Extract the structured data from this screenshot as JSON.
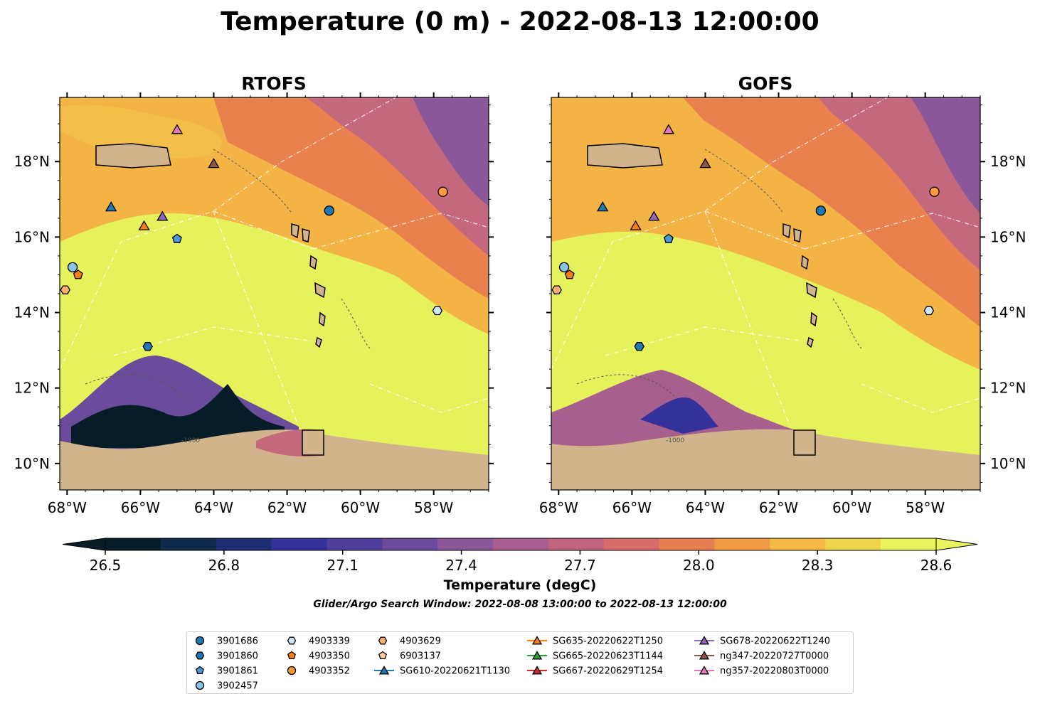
{
  "figure": {
    "title": "Temperature (0 m) - 2022-08-13 12:00:00",
    "search_window": "Glider/Argo Search Window: 2022-08-08 13:00:00 to 2022-08-13 12:00:00"
  },
  "colors": {
    "land": "#d2b48c",
    "water_inland": "#8fb3d9",
    "track": "#ffffff",
    "stops": [
      "#061c26",
      "#0d2a4a",
      "#1d2f72",
      "#35319b",
      "#4f3e9c",
      "#6b4b9b",
      "#8a5798",
      "#a75f8e",
      "#c26480",
      "#d86c6a",
      "#e77f52",
      "#f19b44",
      "#f5ba45",
      "#efd54d",
      "#e8f55c"
    ]
  },
  "chart_data": [
    {
      "type": "heatmap",
      "title": "RTOFS",
      "xlabel": "",
      "ylabel": "",
      "xlim": [
        -68.2,
        -56.5
      ],
      "ylim": [
        9.3,
        19.7
      ],
      "xticks": [
        "68°W",
        "66°W",
        "64°W",
        "62°W",
        "60°W",
        "58°W"
      ],
      "xtick_values": [
        -68,
        -66,
        -64,
        -62,
        -60,
        -58
      ],
      "yticks": [
        "10°N",
        "12°N",
        "14°N",
        "16°N",
        "18°N"
      ],
      "ytick_values": [
        10,
        12,
        14,
        16,
        18
      ],
      "contour_labels": [
        "-1000"
      ],
      "observations": [
        {
          "name": "3901686",
          "lon": -60.85,
          "lat": 16.7
        },
        {
          "name": "3901860",
          "lon": -65.8,
          "lat": 13.1
        },
        {
          "name": "3901861",
          "lon": -65.0,
          "lat": 15.95
        },
        {
          "name": "3902457",
          "lon": -67.85,
          "lat": 15.2
        },
        {
          "name": "4903339",
          "lon": -57.9,
          "lat": 14.05
        },
        {
          "name": "4903350",
          "lon": -67.7,
          "lat": 15.0
        },
        {
          "name": "4903352",
          "lon": -57.75,
          "lat": 17.2
        },
        {
          "name": "4903629",
          "lon": -68.05,
          "lat": 14.6
        },
        {
          "name": "SG610-20220621T1130",
          "lon": -66.8,
          "lat": 16.8
        },
        {
          "name": "SG635-20220622T1250",
          "lon": -65.9,
          "lat": 16.3
        },
        {
          "name": "SG678-20220622T1240",
          "lon": -65.4,
          "lat": 16.55
        },
        {
          "name": "ng347-20220727T0000",
          "lon": -64.0,
          "lat": 17.95
        },
        {
          "name": "ng357-20220803T0000",
          "lon": -65.0,
          "lat": 18.85
        }
      ]
    },
    {
      "type": "heatmap",
      "title": "GOFS",
      "xlabel": "",
      "ylabel": "",
      "xlim": [
        -68.2,
        -56.5
      ],
      "ylim": [
        9.3,
        19.7
      ],
      "xticks": [
        "68°W",
        "66°W",
        "64°W",
        "62°W",
        "60°W",
        "58°W"
      ],
      "xtick_values": [
        -68,
        -66,
        -64,
        -62,
        -60,
        -58
      ],
      "yticks": [
        "10°N",
        "12°N",
        "14°N",
        "16°N",
        "18°N"
      ],
      "ytick_values": [
        10,
        12,
        14,
        16,
        18
      ],
      "contour_labels": [
        "-1000"
      ],
      "observations": [
        {
          "name": "3901686",
          "lon": -60.85,
          "lat": 16.7
        },
        {
          "name": "3901860",
          "lon": -65.8,
          "lat": 13.1
        },
        {
          "name": "3901861",
          "lon": -65.0,
          "lat": 15.95
        },
        {
          "name": "3902457",
          "lon": -67.85,
          "lat": 15.2
        },
        {
          "name": "4903339",
          "lon": -57.9,
          "lat": 14.05
        },
        {
          "name": "4903350",
          "lon": -67.7,
          "lat": 15.0
        },
        {
          "name": "4903352",
          "lon": -57.75,
          "lat": 17.2
        },
        {
          "name": "4903629",
          "lon": -68.05,
          "lat": 14.6
        },
        {
          "name": "SG610-20220621T1130",
          "lon": -66.8,
          "lat": 16.8
        },
        {
          "name": "SG635-20220622T1250",
          "lon": -65.9,
          "lat": 16.3
        },
        {
          "name": "SG678-20220622T1240",
          "lon": -65.4,
          "lat": 16.55
        },
        {
          "name": "ng347-20220727T0000",
          "lon": -64.0,
          "lat": 17.95
        },
        {
          "name": "ng357-20220803T0000",
          "lon": -65.0,
          "lat": 18.85
        }
      ]
    }
  ],
  "colorbar": {
    "label": "Temperature (degC)",
    "ticks": [
      "26.5",
      "26.8",
      "27.1",
      "27.4",
      "27.7",
      "28.0",
      "28.3",
      "28.6"
    ],
    "tick_values": [
      26.5,
      26.8,
      27.1,
      27.4,
      27.7,
      28.0,
      28.3,
      28.6
    ],
    "range": [
      26.5,
      28.6
    ],
    "extend": "both"
  },
  "legend": {
    "items": [
      {
        "label": "3901686",
        "marker": "circle",
        "color": "#1f77b4"
      },
      {
        "label": "3901860",
        "marker": "hexagon",
        "color": "#1f77b4"
      },
      {
        "label": "3901861",
        "marker": "pentagon",
        "color": "#4a98d8"
      },
      {
        "label": "3902457",
        "marker": "circle",
        "color": "#88c3ea"
      },
      {
        "label": "4903339",
        "marker": "hexagon",
        "color": "#cfe7fb"
      },
      {
        "label": "4903350",
        "marker": "pentagon",
        "color": "#ff7f0e"
      },
      {
        "label": "4903352",
        "marker": "circle",
        "color": "#ff9a3c"
      },
      {
        "label": "4903629",
        "marker": "hexagon",
        "color": "#ffae6b"
      },
      {
        "label": "6903137",
        "marker": "pentagon",
        "color": "#ffc89a"
      },
      {
        "label": "SG610-20220621T1130",
        "marker": "triangle",
        "color": "#1f77b4",
        "line": true
      },
      {
        "label": "SG635-20220622T1250",
        "marker": "triangle",
        "color": "#ff7f0e",
        "line": true
      },
      {
        "label": "SG665-20220623T1144",
        "marker": "triangle",
        "color": "#2ca02c",
        "line": true
      },
      {
        "label": "SG667-20220629T1254",
        "marker": "triangle",
        "color": "#d62728",
        "line": true
      },
      {
        "label": "SG678-20220622T1240",
        "marker": "triangle",
        "color": "#9467bd",
        "line": true
      },
      {
        "label": "ng347-20220727T0000",
        "marker": "triangle",
        "color": "#8c564b",
        "line": true
      },
      {
        "label": "ng357-20220803T0000",
        "marker": "triangle",
        "color": "#e377c2",
        "line": true
      }
    ]
  }
}
